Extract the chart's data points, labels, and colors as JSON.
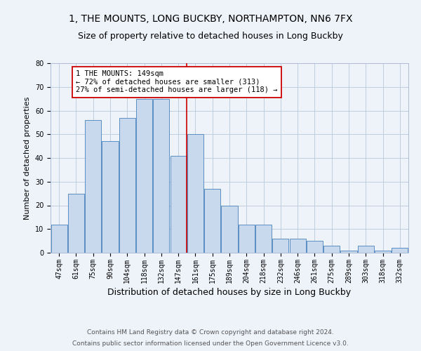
{
  "title": "1, THE MOUNTS, LONG BUCKBY, NORTHAMPTON, NN6 7FX",
  "subtitle": "Size of property relative to detached houses in Long Buckby",
  "xlabel": "Distribution of detached houses by size in Long Buckby",
  "ylabel": "Number of detached properties",
  "categories": [
    "47sqm",
    "61sqm",
    "75sqm",
    "90sqm",
    "104sqm",
    "118sqm",
    "132sqm",
    "147sqm",
    "161sqm",
    "175sqm",
    "189sqm",
    "204sqm",
    "218sqm",
    "232sqm",
    "246sqm",
    "261sqm",
    "275sqm",
    "289sqm",
    "303sqm",
    "318sqm",
    "332sqm"
  ],
  "values": [
    12,
    25,
    56,
    47,
    57,
    65,
    65,
    41,
    50,
    27,
    20,
    12,
    12,
    6,
    6,
    5,
    3,
    1,
    3,
    1,
    2
  ],
  "bar_color": "#c8d9ee",
  "bar_edge_color": "#5a8fc3",
  "vline_x_index": 7,
  "vline_color": "#cc0000",
  "annotation_text": "1 THE MOUNTS: 149sqm\n← 72% of detached houses are smaller (313)\n27% of semi-detached houses are larger (118) →",
  "annotation_box_color": "#ffffff",
  "annotation_box_edgecolor": "#cc0000",
  "ylim": [
    0,
    80
  ],
  "yticks": [
    0,
    10,
    20,
    30,
    40,
    50,
    60,
    70,
    80
  ],
  "footer1": "Contains HM Land Registry data © Crown copyright and database right 2024.",
  "footer2": "Contains public sector information licensed under the Open Government Licence v3.0.",
  "background_color": "#eef2f9",
  "plot_background_color": "#eef2f9",
  "title_fontsize": 10,
  "subtitle_fontsize": 9,
  "xlabel_fontsize": 9,
  "ylabel_fontsize": 8,
  "tick_fontsize": 7,
  "footer_fontsize": 6.5,
  "annotation_fontsize": 7.5
}
